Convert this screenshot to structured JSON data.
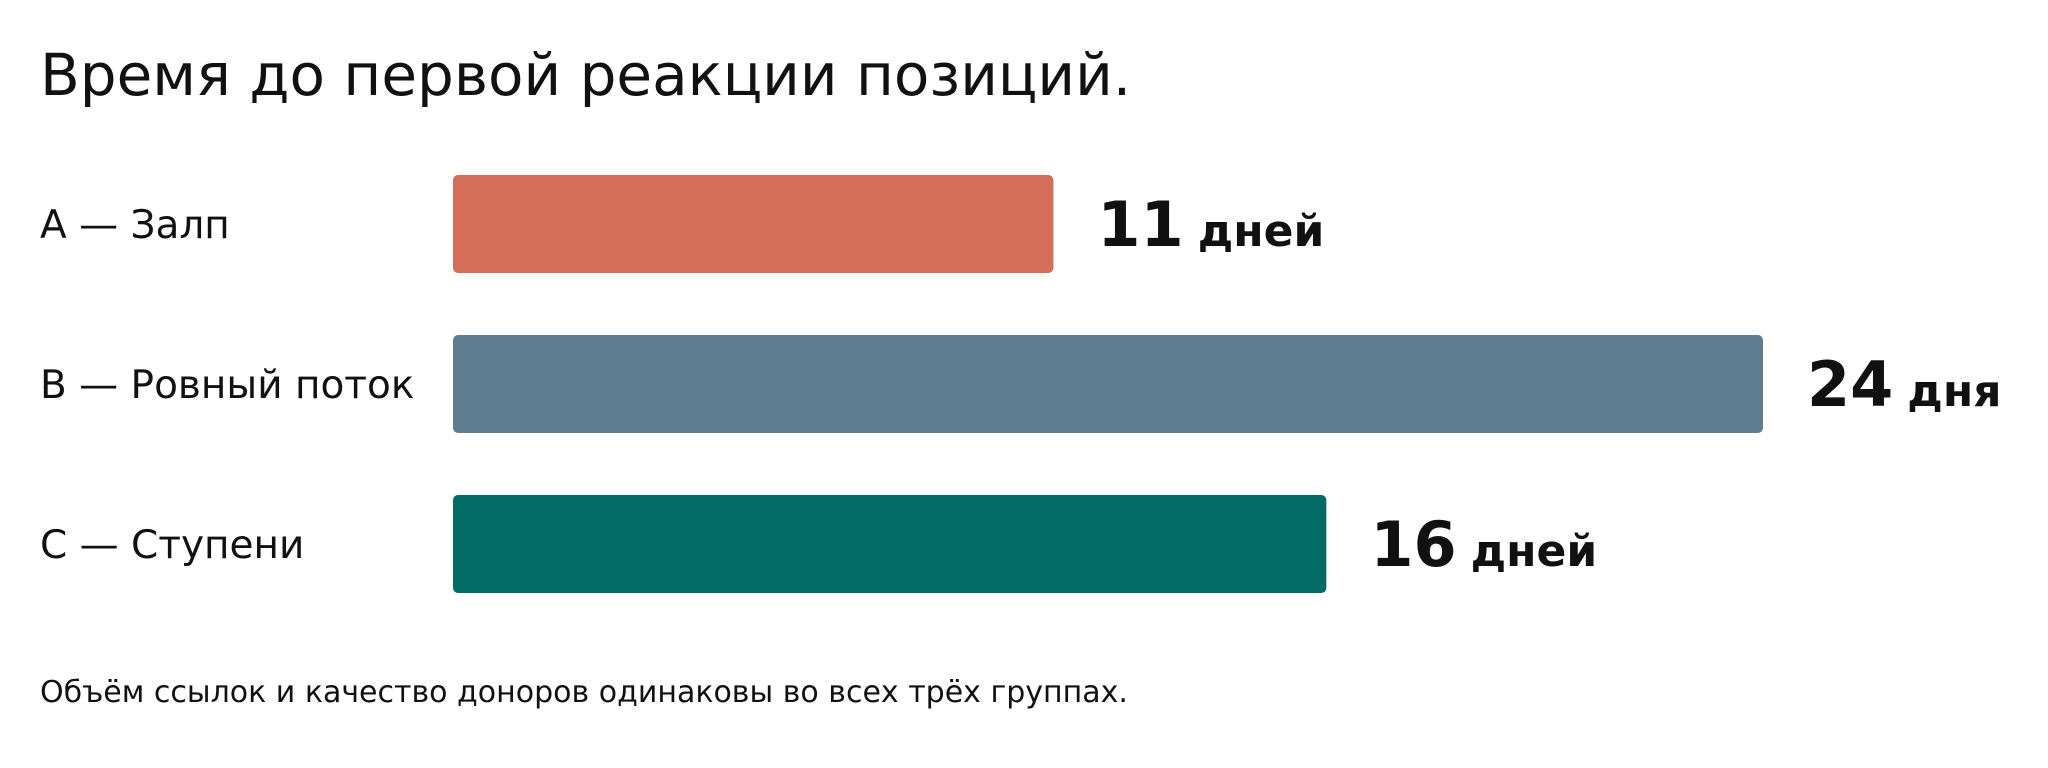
{
  "chart_data": {
    "type": "bar",
    "orientation": "horizontal",
    "title": "Время до первой реакции позиций.",
    "categories": [
      "A — Залп",
      "B — Ровный поток",
      "C — Ступени"
    ],
    "values": [
      11,
      24,
      16
    ],
    "value_units": [
      "дней",
      "дня",
      "дней"
    ],
    "colors": [
      "#D56E58",
      "#5E7B8F",
      "#026B65"
    ],
    "xlim": [
      0,
      24
    ],
    "grid": false,
    "legend": "none",
    "footnote": "Объём ссылок и качество доноров одинаковы во всех трёх группах."
  }
}
